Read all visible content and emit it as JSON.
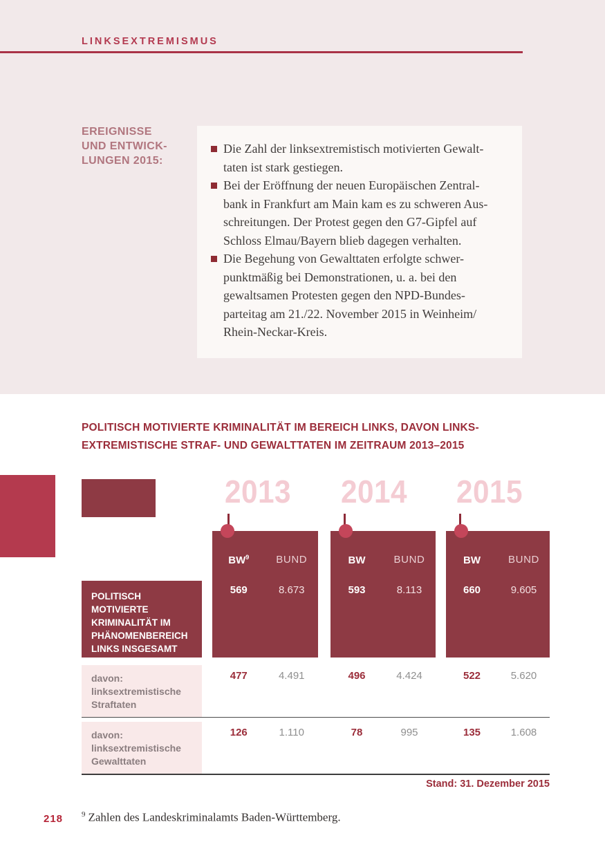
{
  "page": {
    "header": "LINKSEXTREMISMUS",
    "page_number": "218",
    "footnote": {
      "marker": "9",
      "text": "Zahlen des Landeskriminalamts Baden-Württemberg."
    }
  },
  "events": {
    "label": "EREIGNISSE\nUND ENTWICK-\nLUNGEN 2015:",
    "bullets": [
      "Die Zahl der linksextremistisch motivierten Gewalt-\ntaten ist stark gestiegen.",
      "Bei der Eröffnung der neuen Europäischen Zentral-\nbank in Frankfurt am Main kam es zu schweren Aus-\nschreitungen. Der Protest gegen den G7-Gipfel auf\nSchloss Elmau/Bayern blieb dagegen verhalten.",
      "Die Begehung von Gewalttaten erfolgte schwer-\npunktmäßig bei Demonstrationen, u. a. bei den\ngewaltsamen Protesten gegen den NPD-Bundes-\nparteitag am 21./22. November 2015 in Weinheim/\nRhein-Neckar-Kreis."
    ]
  },
  "table": {
    "title": "POLITISCH MOTIVIERTE KRIMINALITÄT IM BEREICH LINKS, DAVON LINKS-\nEXTREMISTISCHE STRAF- UND GEWALTTATEN IM ZEITRAUM 2013–2015",
    "stand": "Stand: 31. Dezember 2015",
    "row_labels": {
      "total": "POLITISCH MOTIVIERTE\nKRIMINALITÄT IM\nPHÄNOMENBEREICH\nLINKS INSGESAMT",
      "straftaten": "davon:\nlinksextremistische\nStraftaten",
      "gewalttaten": "davon:\nlinksextremistische\nGewalttaten"
    },
    "years": [
      {
        "label": "2013",
        "bw_header": "BW",
        "bw_sup": "9",
        "bund_header": "BUND",
        "total_bw": "569",
        "total_bund": "8.673",
        "straf_bw": "477",
        "straf_bund": "4.491",
        "gewalt_bw": "126",
        "gewalt_bund": "1.110"
      },
      {
        "label": "2014",
        "bw_header": "BW",
        "bw_sup": "",
        "bund_header": "BUND",
        "total_bw": "593",
        "total_bund": "8.113",
        "straf_bw": "496",
        "straf_bund": "4.424",
        "gewalt_bw": "78",
        "gewalt_bund": "995"
      },
      {
        "label": "2015",
        "bw_header": "BW",
        "bw_sup": "",
        "bund_header": "BUND",
        "total_bw": "660",
        "total_bund": "9.605",
        "straf_bw": "522",
        "straf_bund": "5.620",
        "gewalt_bw": "135",
        "gewalt_bund": "1.608"
      }
    ]
  },
  "colors": {
    "band_pink": "#f2e9ea",
    "accent_crimson": "#b43a4e",
    "maroon": "#8e3a44",
    "title_red": "#9b2d3a",
    "year_pale_pink": "#f4ccd3",
    "dot_red": "#c4465a",
    "row_pink": "#f9e9e9",
    "header_crimson": "#b33a50"
  }
}
